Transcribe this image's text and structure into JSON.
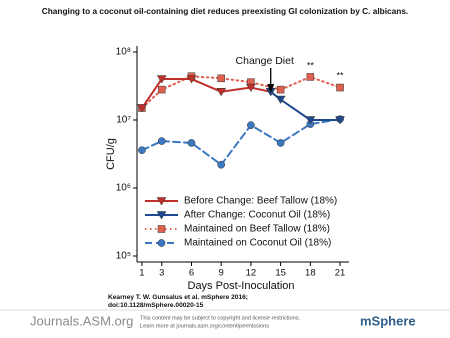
{
  "title": "Changing to a coconut oil-containing diet reduces preexisting GI colonization by C. albicans.",
  "chart_data": {
    "type": "line",
    "ylabel": "CFU/g",
    "xlabel": "Days Post-Inoculation",
    "xlim": [
      0.5,
      21.5
    ],
    "xticks": [
      1,
      3,
      6,
      9,
      12,
      15,
      18,
      21
    ],
    "ylim": [
      100000,
      100000000
    ],
    "log_y": true,
    "yticks": [
      {
        "value": 100000,
        "label": "10⁵"
      },
      {
        "value": 1000000,
        "label": "10⁶"
      },
      {
        "value": 10000000,
        "label": "10⁷"
      },
      {
        "value": 100000000,
        "label": "10⁸"
      }
    ],
    "series": [
      {
        "name": "Before Change: Beef Tallow (18%)",
        "color": "#c0302a",
        "style": "solid",
        "marker": "triangle-down",
        "x": [
          1,
          3,
          6,
          9,
          12,
          14
        ],
        "values": [
          15000000,
          40000000,
          40000000,
          26000000,
          30000000,
          26000000
        ]
      },
      {
        "name": "After Change: Coconut Oil (18%)",
        "color": "#1f4a8f",
        "style": "solid",
        "marker": "triangle-down",
        "x": [
          14,
          15,
          18,
          21
        ],
        "values": [
          26000000,
          20000000,
          10000000,
          10000000
        ]
      },
      {
        "name": "Maintained on Beef Tallow (18%)",
        "color": "#e0604f",
        "style": "dotted",
        "marker": "square",
        "x": [
          1,
          3,
          6,
          9,
          12,
          15,
          18,
          21
        ],
        "values": [
          15000000,
          28000000,
          44000000,
          41000000,
          36000000,
          28000000,
          43000000,
          30000000
        ]
      },
      {
        "name": "Maintained on Coconut Oil (18%)",
        "color": "#3c78c0",
        "style": "dashed",
        "marker": "circle",
        "x": [
          1,
          3,
          6,
          9,
          12,
          15,
          18,
          21
        ],
        "values": [
          3600000,
          4900000,
          4600000,
          2200000,
          8400000,
          4600000,
          8700000,
          10300000
        ]
      }
    ],
    "annotations": [
      "Change Diet",
      "**",
      "**"
    ]
  },
  "citation": [
    "Kearney T. W. Gunsalus et al. mSphere 2016;",
    "doi:10.1128/mSphere.00020-15"
  ],
  "footer": {
    "site": "Journals.ASM.org",
    "notice": [
      "This content may be subject to copyright and license restrictions.",
      "Learn more at journals.asm.org/content/permissions"
    ],
    "journal": "mSphere"
  }
}
